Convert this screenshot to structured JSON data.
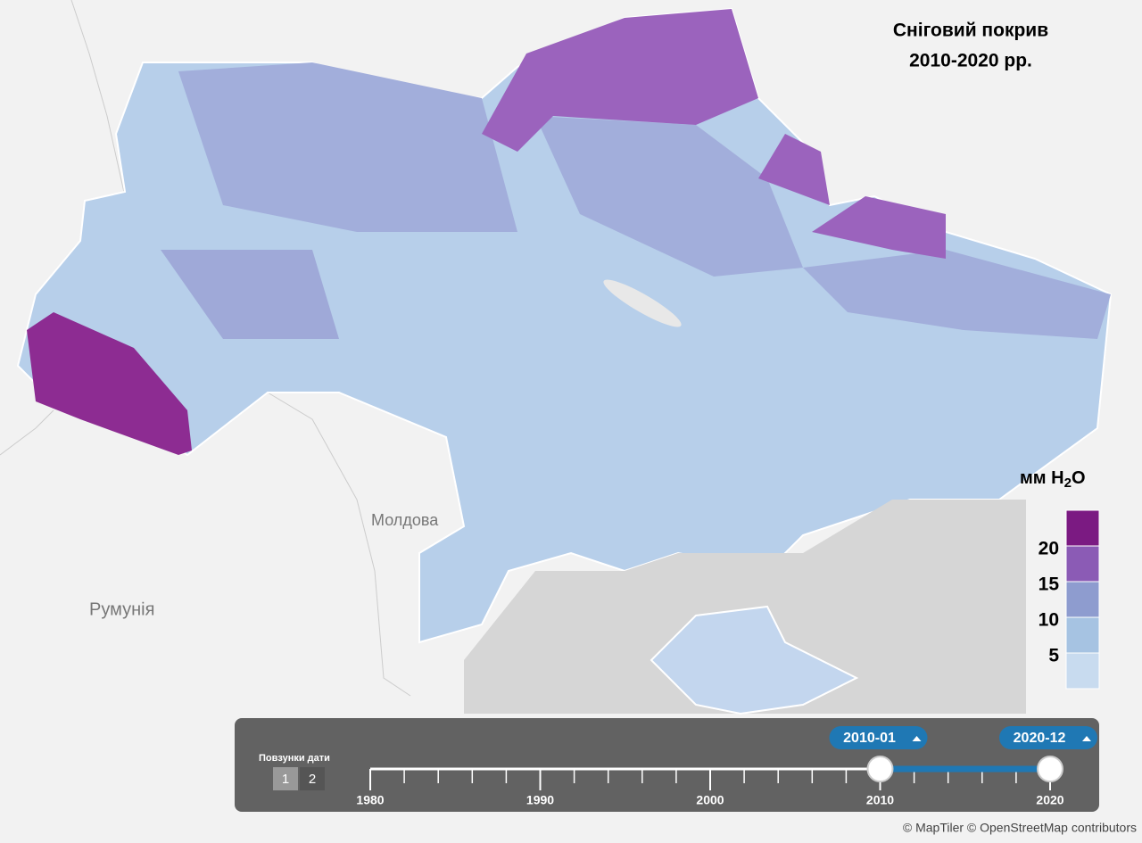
{
  "title": [
    "Сніговий покрив",
    "2010-2020 рр."
  ],
  "places": [
    "Молдова",
    "Румунія"
  ],
  "legend": {
    "unit": [
      "мм H",
      "2",
      "O"
    ],
    "ticks": [
      5,
      10,
      15,
      20
    ],
    "colors": [
      "#c8dbef",
      "#a6c3e2",
      "#8e9ccf",
      "#8b5bb5",
      "#7b1a82"
    ]
  },
  "slider": {
    "label": "Повзунки дати",
    "buttons": [
      "1",
      "2"
    ],
    "start": "2010-01",
    "end": "2020-12",
    "handles": [
      2010,
      2020
    ],
    "axis_ticks": [
      1980,
      1990,
      2000,
      2010,
      2020
    ]
  },
  "attribution": "© MapTiler © OpenStreetMap contributors"
}
